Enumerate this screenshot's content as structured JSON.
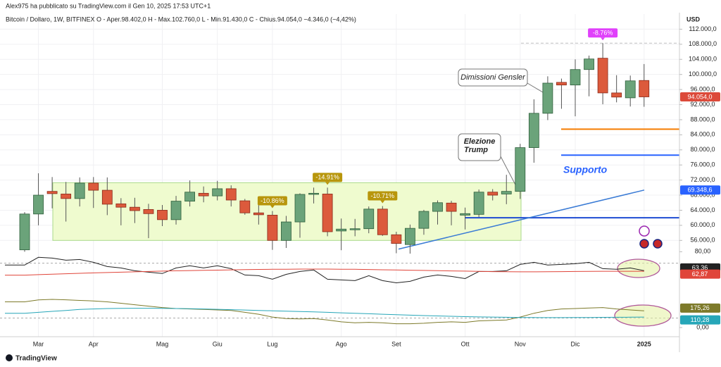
{
  "chart_data": [
    {
      "type": "candlestick",
      "caption": "Alex975 ha pubblicato su TradingView.com il Gen 10, 2025 17:53 UTC+1",
      "title": "Bitcoin / Dollaro, 1W, BITFINEX  O - Aper.98.402,0  H - Max.102.760,0  L - Min.91.430,0  C - Chius.94.054,0  −4.346,0 (−4,42%)",
      "brand": "TradingView",
      "currency": "USD",
      "categories": [
        null,
        "Mar",
        null,
        null,
        null,
        "Apr",
        null,
        null,
        null,
        null,
        "Mag",
        null,
        null,
        null,
        "Giu",
        null,
        null,
        null,
        "Lug",
        null,
        null,
        null,
        null,
        "Ago",
        null,
        null,
        null,
        "Set",
        null,
        null,
        null,
        null,
        "Ott",
        null,
        null,
        null,
        "Nov",
        null,
        null,
        null,
        "Dic",
        null,
        null,
        null,
        null,
        "2025"
      ],
      "open": [
        53500,
        63000,
        69000,
        68300,
        67100,
        71200,
        69300,
        65700,
        64800,
        64200,
        64000,
        61500,
        66400,
        68500,
        67800,
        69700,
        66500,
        63300,
        62700,
        56000,
        60900,
        68200,
        68300,
        58500,
        58900,
        59100,
        64300,
        57500,
        54900,
        59200,
        63700,
        65900,
        62700,
        62900,
        68800,
        68300,
        69000,
        80600,
        89700,
        97900,
        97200,
        101300,
        104300,
        95100,
        93800,
        98402
      ],
      "high": [
        63500,
        73800,
        72800,
        71500,
        72700,
        72800,
        72700,
        67200,
        67300,
        65700,
        65400,
        67800,
        71900,
        70300,
        71800,
        70600,
        67000,
        66000,
        63800,
        62500,
        68500,
        70000,
        70000,
        61800,
        61700,
        65000,
        65100,
        58300,
        60200,
        64100,
        66600,
        66500,
        64700,
        69500,
        69600,
        73400,
        81600,
        93400,
        99500,
        98900,
        104000,
        105000,
        108300,
        99800,
        99700,
        102760
      ],
      "low": [
        53000,
        60000,
        64500,
        61000,
        65000,
        64600,
        62700,
        60000,
        60600,
        56600,
        59800,
        60200,
        65000,
        66100,
        66600,
        65000,
        62800,
        60200,
        53500,
        54000,
        56700,
        65800,
        57100,
        53400,
        57100,
        57900,
        57200,
        52600,
        52500,
        57500,
        60200,
        60000,
        58900,
        62200,
        66600,
        65600,
        67000,
        76600,
        87900,
        90900,
        88900,
        94200,
        92100,
        92600,
        91500,
        91430
      ],
      "close": [
        63000,
        68000,
        68400,
        67100,
        71200,
        69300,
        65600,
        64800,
        63900,
        63100,
        61500,
        66400,
        68800,
        67800,
        69700,
        66700,
        63300,
        62800,
        56000,
        60900,
        68200,
        68500,
        58300,
        59000,
        59100,
        64300,
        57500,
        55200,
        59200,
        63700,
        66000,
        63700,
        63100,
        68800,
        68000,
        69000,
        80600,
        89700,
        97700,
        97200,
        101300,
        104100,
        95100,
        94000,
        98300,
        94054
      ],
      "up_color": "#6ba37a",
      "down_color": "#dc5a3c",
      "ylim": [
        54000,
        116000
      ],
      "yticks": [
        {
          "value": 56000,
          "label": "56.000,0"
        },
        {
          "value": 60000,
          "label": "60.000,0"
        },
        {
          "value": 64000,
          "label": "64.000,0"
        },
        {
          "value": 68000,
          "label": "68.000,0"
        },
        {
          "value": 72000,
          "label": "72.000,0"
        },
        {
          "value": 76000,
          "label": "76.000,0"
        },
        {
          "value": 80000,
          "label": "80.000,0"
        },
        {
          "value": 84000,
          "label": "84.000,0"
        },
        {
          "value": 88000,
          "label": "88.000,0"
        },
        {
          "value": 92000,
          "label": "92.000,0"
        },
        {
          "value": 96000,
          "label": "96.000,0"
        },
        {
          "value": 100000,
          "label": "100.000,0"
        },
        {
          "value": 104000,
          "label": "104.000,0"
        },
        {
          "value": 108000,
          "label": "108.000,0"
        },
        {
          "value": 112000,
          "label": "112.000,0"
        }
      ],
      "grid": true,
      "price_labels": [
        {
          "value": 94054,
          "label": "94.054,0",
          "color": "#dc4a3a"
        },
        {
          "value": 69348.6,
          "label": "69.348,6",
          "color": "#2962ff"
        }
      ],
      "zone": {
        "range": [
          56000,
          71300
        ],
        "color": "#effbcf"
      },
      "trendline": {
        "values": [
          53700,
          69348.6
        ],
        "color": "#3a7bd5"
      },
      "hlines": [
        {
          "value": 85500,
          "color": "#f57c00"
        },
        {
          "value": 78600,
          "color": "#2962ff"
        },
        {
          "value": 62000,
          "color": "#1e4bd2"
        },
        {
          "value": 108300,
          "color": "#c0c0c0",
          "dashed": true
        }
      ],
      "callouts": [
        {
          "text": "-10.86%",
          "color": "#b8960c"
        },
        {
          "text": "-14.91%",
          "color": "#b8960c"
        },
        {
          "text": "-10.71%",
          "color": "#b8960c"
        },
        {
          "text": "-8.76%",
          "color": "#e040fb"
        }
      ],
      "annotations": [
        {
          "text": "Dimissioni Gensler"
        },
        {
          "lines": [
            "Elezione",
            "Trump"
          ]
        },
        {
          "text": "Supporto",
          "color": "#2962ff"
        }
      ]
    },
    {
      "type": "line",
      "series": [
        {
          "color": "#222222",
          "label": "63,36",
          "values": [
            68.3,
            75.1,
            74.4,
            72.6,
            73.2,
            70.7,
            67.0,
            65.8,
            63.3,
            62.1,
            60.9,
            65.8,
            67.7,
            65.8,
            67.7,
            65.2,
            59.6,
            59.0,
            55.9,
            60.2,
            62.7,
            64.0,
            55.9,
            55.3,
            54.7,
            59.0,
            54.7,
            52.8,
            54.1,
            57.8,
            59.6,
            58.4,
            56.5,
            62.7,
            62.7,
            63.3,
            68.9,
            70.7,
            68.3,
            68.9,
            69.5,
            70.7,
            65.2,
            64.6,
            65.8,
            63.36
          ]
        },
        {
          "color": "#e0453a",
          "label": "62,87",
          "values": [
            59.5,
            59.9,
            60.3,
            60.7,
            61.1,
            61.5,
            61.8,
            62.1,
            62.4,
            62.7,
            63.0,
            63.3,
            63.5,
            63.7,
            63.9,
            64.1,
            64.3,
            64.5,
            64.6,
            64.7,
            64.8,
            64.8,
            64.8,
            64.7,
            64.6,
            64.4,
            64.2,
            64.0,
            63.8,
            63.6,
            63.4,
            63.2,
            63.0,
            62.8,
            62.6,
            62.5,
            62.4,
            62.4,
            62.5,
            62.6,
            62.7,
            62.8,
            62.9,
            62.9,
            62.9,
            62.87
          ]
        }
      ],
      "ylim": [
        50,
        83.3
      ],
      "yticks": [
        {
          "value": 80,
          "label": "80,00"
        }
      ],
      "levels": [
        70
      ]
    },
    {
      "type": "line",
      "series": [
        {
          "color": "#7d7a2a",
          "label": "175,26",
          "values": [
            270,
            290,
            296,
            292,
            285,
            280,
            270,
            255,
            240,
            225,
            210,
            200,
            195,
            190,
            185,
            180,
            160,
            140,
            110,
            95,
            90,
            95,
            80,
            60,
            50,
            55,
            50,
            40,
            40,
            45,
            55,
            60,
            55,
            70,
            75,
            80,
            110,
            150,
            180,
            195,
            200,
            205,
            210,
            195,
            185,
            175.26
          ]
        },
        {
          "color": "#26a6b8",
          "label": "110,28",
          "values": [
            150,
            160,
            170,
            180,
            190,
            195,
            200,
            202,
            203,
            203,
            202,
            200,
            198,
            195,
            192,
            188,
            184,
            180,
            176,
            172,
            168,
            164,
            160,
            155,
            150,
            145,
            140,
            135,
            130,
            126,
            122,
            118,
            115,
            112,
            110,
            108,
            106,
            105,
            104,
            104,
            105,
            106,
            107,
            108,
            109,
            110.28
          ]
        }
      ],
      "ylim": [
        -52,
        422
      ],
      "yticks": [
        {
          "value": 0,
          "label": "0,00"
        }
      ],
      "levels": [
        100
      ]
    }
  ]
}
